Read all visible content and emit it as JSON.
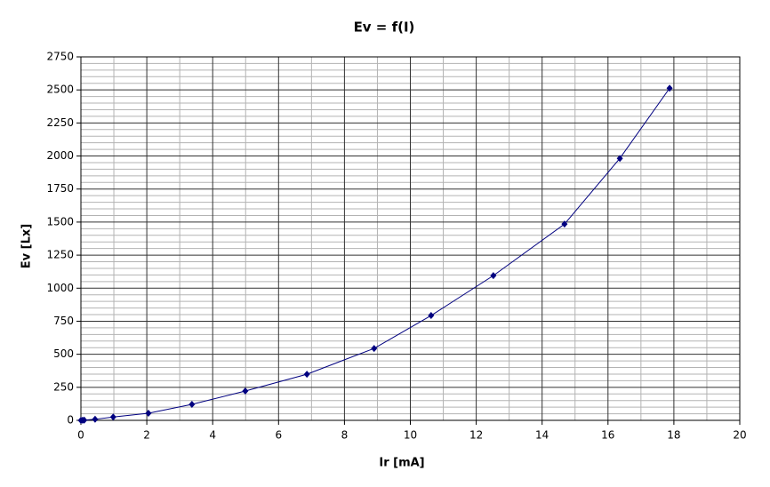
{
  "chart_data": {
    "type": "line",
    "title": "Ev = f(I)",
    "x_label": "Ir [mA]",
    "y_label": "Ev [Lx]",
    "x": [
      0,
      0.05,
      0.1,
      0.43,
      0.98,
      2.05,
      3.37,
      4.99,
      6.86,
      8.9,
      10.63,
      12.52,
      14.68,
      16.36,
      17.87
    ],
    "series": [
      {
        "name": "Ev",
        "color": "#000080",
        "values": [
          0,
          1,
          2,
          8,
          25,
          54,
          121,
          222,
          349,
          544,
          793,
          1095,
          1485,
          1982,
          2513
        ]
      }
    ],
    "xlim": [
      0,
      20
    ],
    "xticks": [
      0,
      2,
      4,
      6,
      8,
      10,
      12,
      14,
      16,
      18,
      20
    ],
    "ylim": [
      0,
      2750
    ],
    "yticks": [
      0,
      250,
      500,
      750,
      1000,
      1250,
      1500,
      1750,
      2000,
      2250,
      2500,
      2750
    ],
    "grid": true,
    "minor_grid": {
      "x": 2,
      "y": 5
    }
  }
}
